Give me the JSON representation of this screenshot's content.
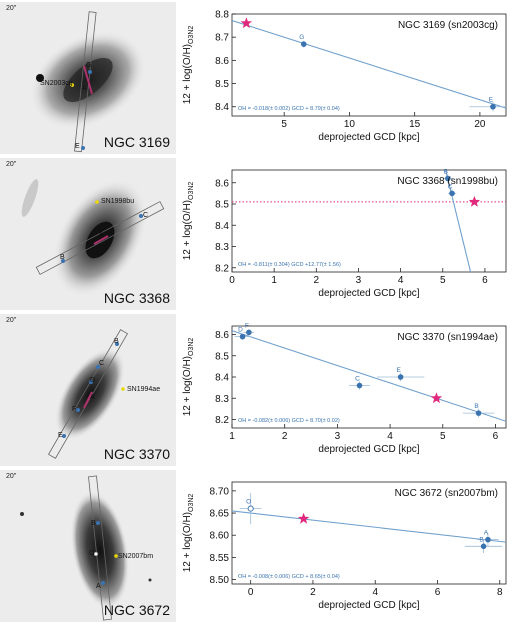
{
  "figure": {
    "panels": [
      {
        "galaxy_name": "NGC 3169",
        "sn_label": "SN2003cg",
        "scale_label": "20\"",
        "image_labels": [
          "G",
          "A",
          "E"
        ]
      },
      {
        "galaxy_name": "NGC 3368",
        "sn_label": "SN1998bu",
        "scale_label": "20\"",
        "image_labels": [
          "A",
          "B",
          "C"
        ]
      },
      {
        "galaxy_name": "NGC 3370",
        "sn_label": "SN1994ae",
        "scale_label": "20\"",
        "image_labels": [
          "A",
          "B",
          "C",
          "D",
          "E",
          "F"
        ]
      },
      {
        "galaxy_name": "NGC 3672",
        "sn_label": "SN2007bm",
        "scale_label": "20\"",
        "image_labels": [
          "A",
          "B",
          "O"
        ]
      }
    ]
  },
  "colors": {
    "fit": "#6fa0cc",
    "point": "#3a73b0",
    "star": "#e0287c",
    "sn_line": "#e0287c"
  },
  "chart_data": [
    {
      "type": "scatter",
      "title": "NGC 3169 (sn2003cg)",
      "xlabel": "deprojected GCD [kpc]",
      "ylabel": "12 + log(O/H)O3N2",
      "xlim": [
        1,
        22
      ],
      "ylim": [
        8.36,
        8.8
      ],
      "xticks": [
        5,
        10,
        15,
        20
      ],
      "yticks": [
        8.4,
        8.5,
        8.6,
        8.7,
        8.8
      ],
      "points": [
        {
          "label": "G",
          "x": 6.5,
          "y": 8.67,
          "xerr": 0,
          "yerr": 0.015
        },
        {
          "label": "E",
          "x": 21.0,
          "y": 8.4,
          "xerr": 1.8,
          "yerr": 0.02
        }
      ],
      "fit": {
        "slope": -0.018,
        "intercept": 8.79
      },
      "fit_text": "OH = -0.018(± 0.002) GCD + 8.79(± 0.04)",
      "sn": {
        "x": 2.1,
        "y": 8.76
      }
    },
    {
      "type": "scatter",
      "title": "NGC 3368 (sn1998bu)",
      "xlabel": "deprojected GCD [kpc]",
      "ylabel": "12 + log(O/H)O3N2",
      "xlim": [
        0,
        6.5
      ],
      "ylim": [
        8.18,
        8.66
      ],
      "xticks": [
        0,
        1,
        2,
        3,
        4,
        5,
        6
      ],
      "yticks": [
        8.2,
        8.3,
        8.4,
        8.5,
        8.6
      ],
      "points": [
        {
          "label": "B",
          "x": 5.12,
          "y": 8.62,
          "xerr": 0.12,
          "yerr": 0.02
        },
        {
          "label": "C",
          "x": 5.22,
          "y": 8.55,
          "xerr": 0.1,
          "yerr": 0.02
        }
      ],
      "fit": {
        "slope": -0.811,
        "intercept": 12.77
      },
      "fit_text": "OH = -0.811(± 0.304) GCD +12.77(± 1.56)",
      "sn": {
        "x": 5.75,
        "y": 8.51
      },
      "sn_hline": 8.51
    },
    {
      "type": "scatter",
      "title": "NGC 3370 (sn1994ae)",
      "xlabel": "deprojected GCD [kpc]",
      "ylabel": "12 + log(O/H)O3N2",
      "xlim": [
        1,
        6.2
      ],
      "ylim": [
        8.16,
        8.64
      ],
      "xticks": [
        1,
        2,
        3,
        4,
        5,
        6
      ],
      "yticks": [
        8.2,
        8.3,
        8.4,
        8.5,
        8.6
      ],
      "points": [
        {
          "label": "D",
          "x": 1.2,
          "y": 8.59,
          "xerr": 0.15,
          "yerr": 0.015
        },
        {
          "label": "F",
          "x": 1.32,
          "y": 8.61,
          "xerr": 0.1,
          "yerr": 0.015
        },
        {
          "label": "C",
          "x": 3.42,
          "y": 8.36,
          "xerr": 0.2,
          "yerr": 0.02
        },
        {
          "label": "E",
          "x": 4.2,
          "y": 8.4,
          "xerr": 0.45,
          "yerr": 0.02
        },
        {
          "label": "B",
          "x": 5.68,
          "y": 8.23,
          "xerr": 0.3,
          "yerr": 0.02
        }
      ],
      "fit": {
        "slope": -0.082,
        "intercept": 8.7
      },
      "fit_text": "OH = -0.082(± 0.006) GCD + 8.70(± 0.02)",
      "sn": {
        "x": 4.88,
        "y": 8.3
      }
    },
    {
      "type": "scatter",
      "title": "NGC 3672 (sn2007bm)",
      "xlabel": "deprojected GCD [kpc]",
      "ylabel": "12 + log(O/H)O3N2",
      "xlim": [
        -0.6,
        8.2
      ],
      "ylim": [
        8.49,
        8.72
      ],
      "xticks": [
        0,
        2,
        4,
        6,
        8
      ],
      "yticks": [
        8.5,
        8.55,
        8.6,
        8.65,
        8.7
      ],
      "ytick_labels": [
        "8.50",
        "8.55",
        "8.60",
        "8.65",
        "8.70"
      ],
      "points": [
        {
          "label": "O",
          "x": 0.0,
          "y": 8.66,
          "xerr": 0.35,
          "yerr": 0.035
        },
        {
          "label": "A",
          "x": 7.62,
          "y": 8.59,
          "xerr": 0.35,
          "yerr": 0.015
        },
        {
          "label": "B",
          "x": 7.48,
          "y": 8.575,
          "xerr": 0.6,
          "yerr": 0.015
        }
      ],
      "fit": {
        "slope": -0.008,
        "intercept": 8.65
      },
      "fit_text": "OH = -0.008(± 0.006) GCD + 8.65(± 0.04)",
      "sn": {
        "x": 1.7,
        "y": 8.637
      }
    }
  ]
}
